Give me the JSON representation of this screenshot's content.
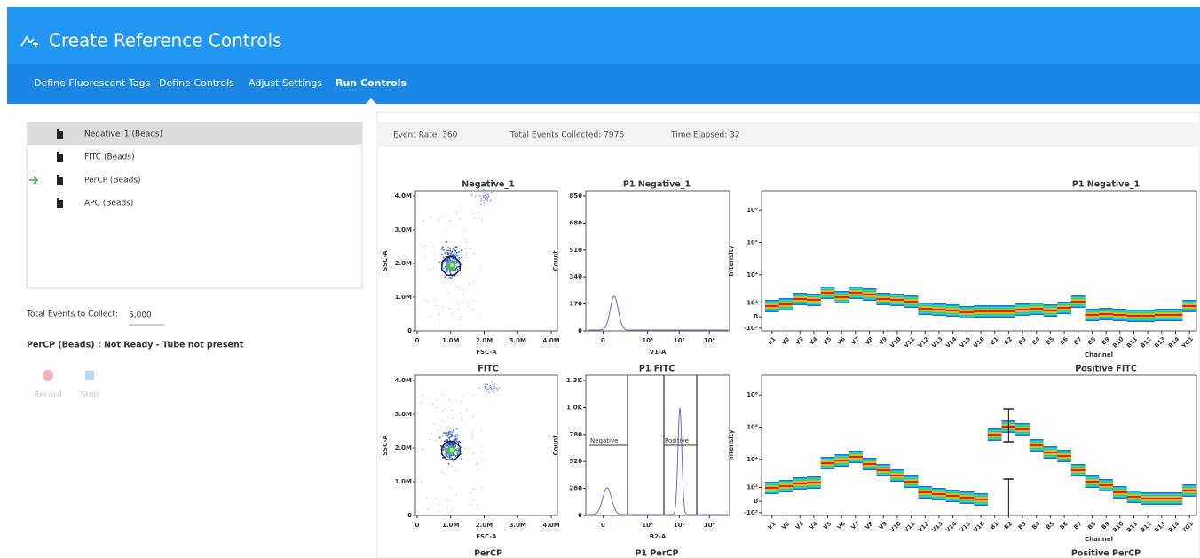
{
  "header": {
    "title": "Create Reference Controls",
    "tabs": [
      "Define Fluorescent Tags",
      "Define Controls",
      "Adjust Settings",
      "Run Controls"
    ],
    "active_tab": 3
  },
  "tubes": {
    "items": [
      "Negative_1 (Beads)",
      "FITC (Beads)",
      "PerCP (Beads)",
      "APC (Beads)"
    ],
    "selected": 0,
    "current": 2
  },
  "collect": {
    "label": "Total Events to Collect:",
    "value": "5,000"
  },
  "status": "PerCP (Beads) : Not Ready - Tube not present",
  "buttons": [
    "Record",
    "Stop"
  ],
  "stats": [
    "Event Rate: 360",
    "Total Events Collected: 7976",
    "Time Elapsed: 32"
  ],
  "plots": [
    {
      "kind": "dot",
      "title": "Negative_1",
      "ylabel": "SSC-A",
      "xlabel": "FSC-A",
      "yticks": [
        "0",
        "1.0M",
        "2.0M",
        "3.0M",
        "4.0M"
      ],
      "xticks": [
        "0",
        "1.0M",
        "2.0M",
        "3.0M",
        "4.0M"
      ]
    },
    {
      "kind": "histogram",
      "title": "P1 Negative_1",
      "ylabel": "Count",
      "xlabel": "V1-A",
      "yticks": [
        "0",
        "170",
        "340",
        "510",
        "680",
        "850"
      ],
      "xticks": [
        "0",
        "10⁴",
        "10⁵",
        "10⁶"
      ]
    },
    {
      "kind": "spectrum",
      "title": "P1 Negative_1",
      "ylabel": "Intensity",
      "xlabel": "Channel",
      "yticks": [
        "-10³",
        "0",
        "10³",
        "10⁴",
        "10⁵",
        "10⁶"
      ],
      "xticks": [
        "V1",
        "V2",
        "V3",
        "V4",
        "V5",
        "V6",
        "V7",
        "V8",
        "V9",
        "V10",
        "V11",
        "V12",
        "V13",
        "V14",
        "V15",
        "V16",
        "B1",
        "B2",
        "B3",
        "B4",
        "B5",
        "B6",
        "B7",
        "B8",
        "B9",
        "B10",
        "B11",
        "B12",
        "B13",
        "B14",
        "YG1"
      ]
    },
    {
      "kind": "dot",
      "title": "FITC",
      "ylabel": "SSC-A",
      "xlabel": "FSC-A",
      "yticks": [
        "0",
        "1.0M",
        "2.0M",
        "3.0M",
        "4.0M"
      ],
      "xticks": [
        "0",
        "1.0M",
        "2.0M",
        "3.0M",
        "4.0M"
      ]
    },
    {
      "kind": "histogram",
      "title": "P1 FITC",
      "ylabel": "Count",
      "xlabel": "B2-A",
      "yticks": [
        "0",
        "260",
        "520",
        "780",
        "1.0K",
        "1.3K"
      ],
      "xticks": [
        "0",
        "10⁴",
        "10⁵",
        "10⁶"
      ],
      "gates": [
        "Negative",
        "Positive"
      ]
    },
    {
      "kind": "spectrum",
      "title": "Positive FITC",
      "ylabel": "Intensity",
      "xlabel": "Channel",
      "yticks": [
        "-10³",
        "0",
        "10³",
        "10⁴",
        "10⁵",
        "10⁶"
      ],
      "xticks": [
        "V1",
        "V2",
        "V3",
        "V4",
        "V5",
        "V6",
        "V7",
        "V8",
        "V9",
        "V10",
        "V11",
        "V12",
        "V13",
        "V14",
        "V15",
        "V16",
        "B1",
        "B2",
        "B3",
        "B4",
        "B5",
        "B6",
        "B7",
        "B8",
        "B9",
        "B10",
        "B11",
        "B12",
        "B13",
        "B14",
        "YG1"
      ]
    }
  ],
  "next_titles": [
    "PerCP",
    "P1 PerCP",
    "Positive PerCP"
  ]
}
